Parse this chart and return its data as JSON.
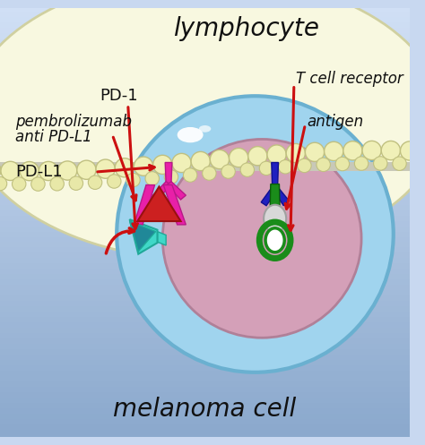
{
  "title": "lymphocyte",
  "bottom_label": "melanoma cell",
  "bg_color_top": "#c8d8f0",
  "bg_color_bottom": "#b0c4e0",
  "lymphocyte_outer_color": "#a0d4ee",
  "lymphocyte_outer_edge": "#6ab0d0",
  "lymphocyte_inner_color": "#d4a0b8",
  "lymphocyte_inner_edge": "#b08098",
  "melanoma_color": "#f8f8e0",
  "melanoma_edge": "#d0d0a0",
  "membrane_bead_outer": "#f0f0b8",
  "membrane_bead_inner": "#e8e8a8",
  "membrane_bead_outline": "#c0c080",
  "membrane_gray": "#c8c8b8",
  "pd1_teal": "#40d8c8",
  "pd1_teal_edge": "#20a898",
  "pd1_dark": "#208898",
  "pemb_magenta": "#e820a8",
  "pemb_magenta_edge": "#b81888",
  "pemb_red": "#cc2020",
  "pemb_red_edge": "#991010",
  "tcr_green": "#1a8c1a",
  "tcr_green_edge": "#0a5c0a",
  "antigen_navy": "#2020c0",
  "antigen_navy_edge": "#101090",
  "antigen_silver": "#d8d8d8",
  "antigen_silver_edge": "#a0a0a0",
  "arrow_color": "#cc1010",
  "text_color": "#111111",
  "label_pd1": "PD-1",
  "label_pembrolizumab": "pembrolizumab",
  "label_anti_pdl1": "anti PD-L1",
  "label_pdl1": "PD-L1",
  "label_tcr": "T cell receptor",
  "label_antigen": "antigen",
  "font_size_title": 20,
  "font_size_labels": 12,
  "font_size_bottom": 20
}
